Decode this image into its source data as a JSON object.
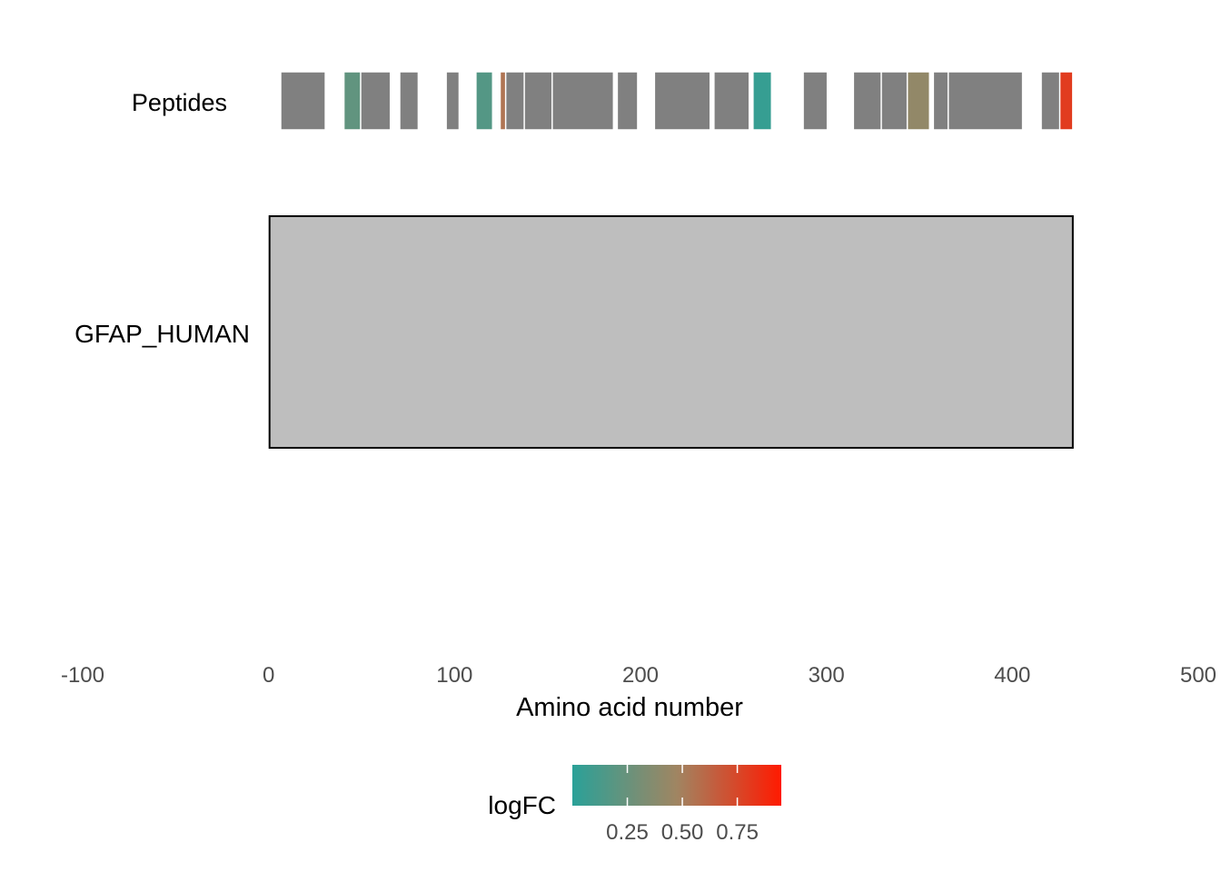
{
  "chart_data": {
    "type": "bar",
    "xlabel": "Amino acid number",
    "xlim": [
      -100,
      500
    ],
    "x_ticks": [
      -100,
      0,
      100,
      200,
      300,
      400,
      500
    ],
    "x_tick_labels": [
      "-100",
      "0",
      "100",
      "200",
      "300",
      "400",
      "500"
    ],
    "grid": false,
    "categories": [
      "Peptides",
      "GFAP_HUMAN"
    ],
    "protein": {
      "name": "GFAP_HUMAN",
      "start": 1,
      "end": 432,
      "color": "#bebebe"
    },
    "peptides": [
      {
        "start": 7,
        "end": 30,
        "logFC": null
      },
      {
        "start": 41,
        "end": 50,
        "logFC": 0.22
      },
      {
        "start": 50,
        "end": 65,
        "logFC": null
      },
      {
        "start": 71,
        "end": 80,
        "logFC": null
      },
      {
        "start": 96,
        "end": 102,
        "logFC": null
      },
      {
        "start": 112,
        "end": 120,
        "logFC": 0.17
      },
      {
        "start": 125,
        "end": 128,
        "logFC": 0.55
      },
      {
        "start": 128,
        "end": 138,
        "logFC": null
      },
      {
        "start": 138,
        "end": 153,
        "logFC": null
      },
      {
        "start": 153,
        "end": 185,
        "logFC": null
      },
      {
        "start": 188,
        "end": 198,
        "logFC": null
      },
      {
        "start": 208,
        "end": 237,
        "logFC": null
      },
      {
        "start": 240,
        "end": 258,
        "logFC": null
      },
      {
        "start": 261,
        "end": 270,
        "logFC": 0.05
      },
      {
        "start": 288,
        "end": 300,
        "logFC": null
      },
      {
        "start": 315,
        "end": 330,
        "logFC": null
      },
      {
        "start": 330,
        "end": 344,
        "logFC": null
      },
      {
        "start": 344,
        "end": 355,
        "logFC": 0.42
      },
      {
        "start": 358,
        "end": 366,
        "logFC": null
      },
      {
        "start": 366,
        "end": 405,
        "logFC": null
      },
      {
        "start": 416,
        "end": 426,
        "logFC": null
      },
      {
        "start": 426,
        "end": 432,
        "logFC": 0.8
      }
    ],
    "na_color": "#808080",
    "legend": {
      "title": "logFC",
      "position": "bottom",
      "min": 0.0,
      "max": 0.95,
      "breaks": [
        0.25,
        0.5,
        0.75
      ],
      "labels": [
        "0.25",
        "0.50",
        "0.75"
      ],
      "low_color": "#2aa198",
      "mid_color": "#a08562",
      "high_color": "#ff1a00"
    }
  }
}
